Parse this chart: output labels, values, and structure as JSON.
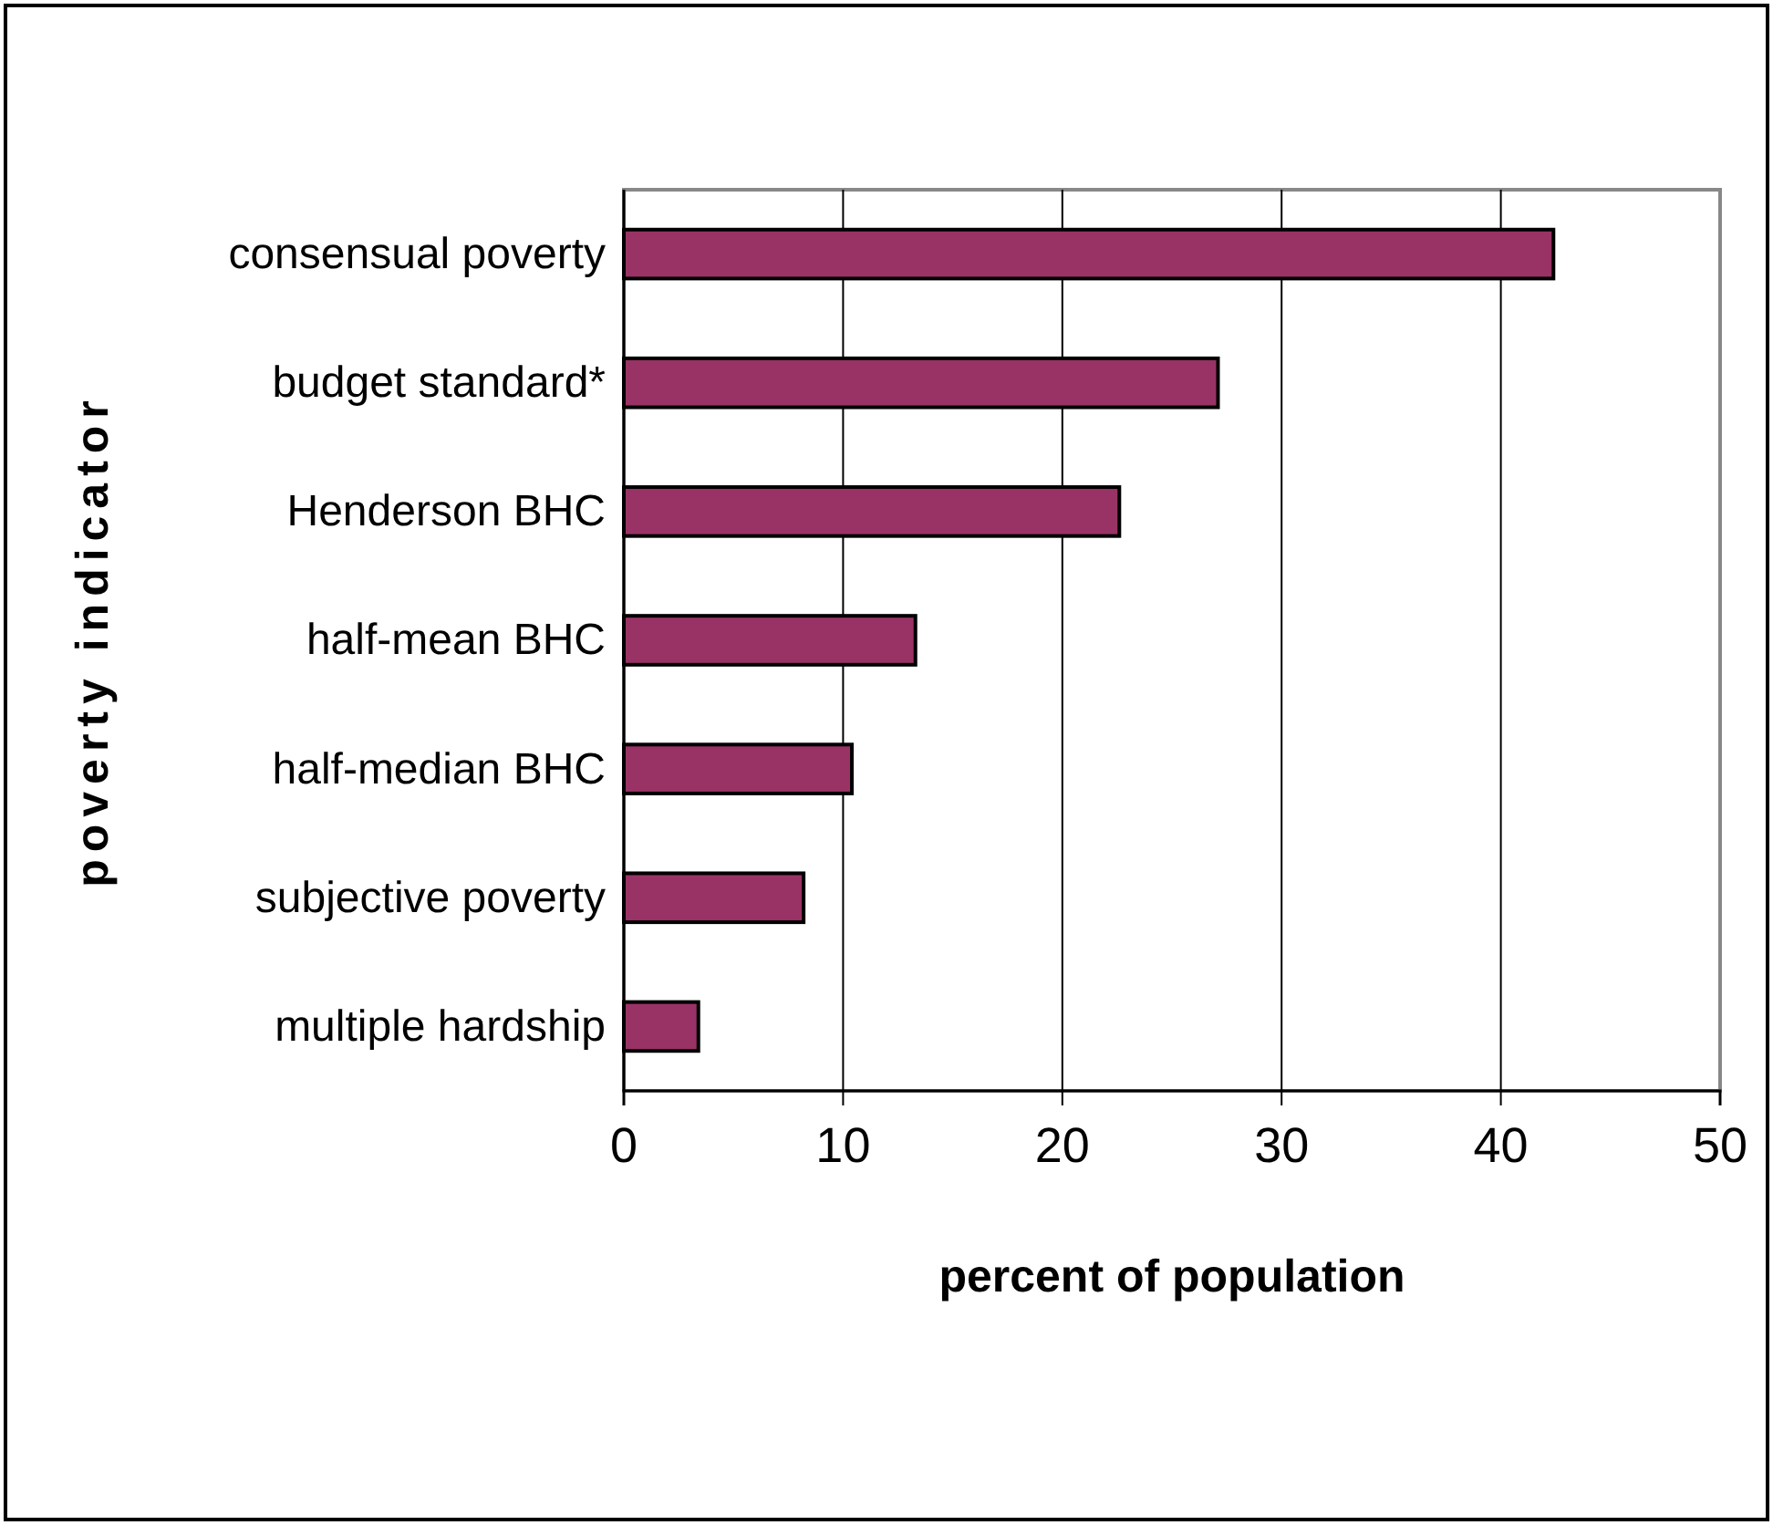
{
  "chart_data": {
    "type": "bar",
    "orientation": "horizontal",
    "xlabel": "percent of population",
    "ylabel": "poverty indicator",
    "categories": [
      "consensual poverty",
      "budget standard*",
      "Henderson BHC",
      "half-mean BHC",
      "half-median BHC",
      "subjective poverty",
      "multiple hardship"
    ],
    "values": [
      42.4,
      27.1,
      22.6,
      13.3,
      10.4,
      8.2,
      3.4
    ],
    "color": "#993366",
    "xlim": [
      0,
      50
    ],
    "xticks": [
      0,
      10,
      20,
      30,
      40,
      50
    ],
    "grid": "x"
  }
}
